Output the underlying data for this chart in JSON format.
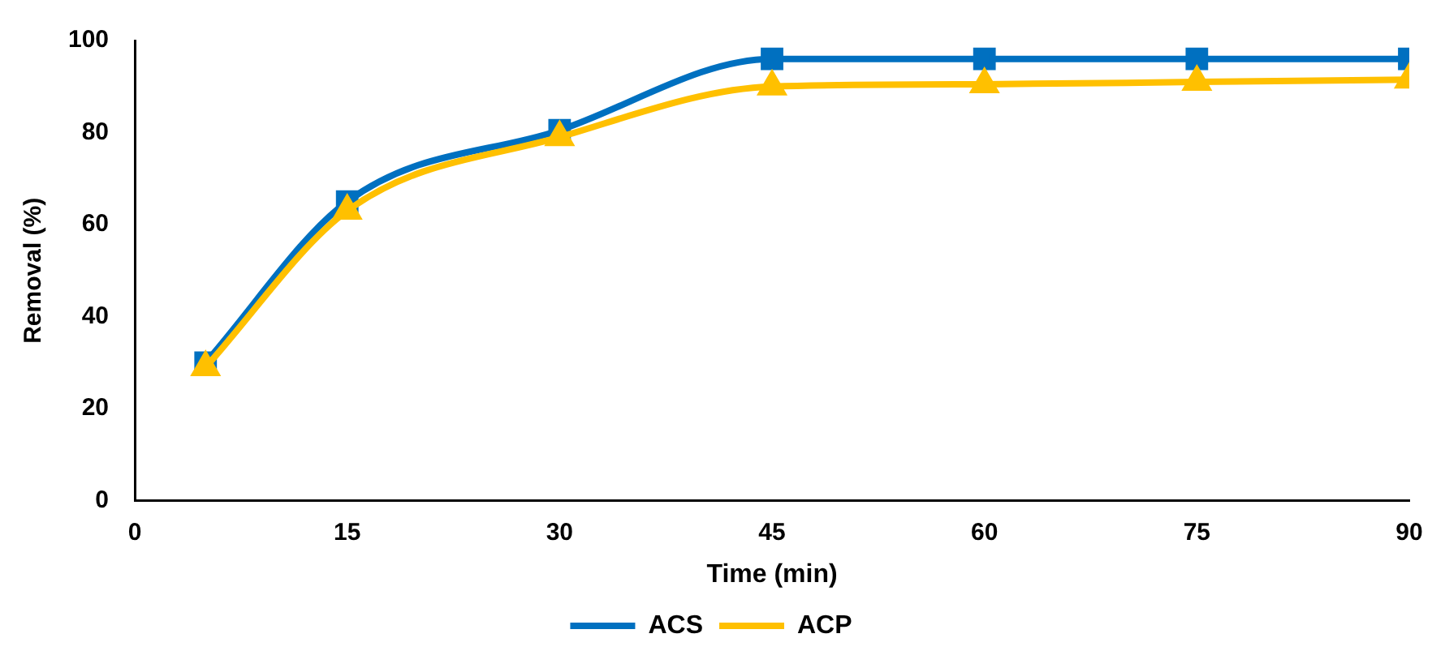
{
  "chart_data": {
    "type": "line",
    "xlabel": "Time (min)",
    "ylabel": "Removal (%)",
    "x": [
      5,
      15,
      30,
      45,
      60,
      75,
      90
    ],
    "series": [
      {
        "name": "ACS",
        "color": "#0070c0",
        "marker": "square",
        "values": [
          30,
          65,
          80.5,
          96,
          96,
          96,
          96
        ]
      },
      {
        "name": "ACP",
        "color": "#ffc000",
        "marker": "triangle",
        "values": [
          29,
          63,
          79,
          90,
          90.5,
          91,
          91.5
        ]
      }
    ],
    "xlim": [
      0,
      90
    ],
    "xticks": [
      0,
      15,
      30,
      45,
      60,
      75,
      90
    ],
    "ylim": [
      0,
      100
    ],
    "yticks": [
      0,
      20,
      40,
      60,
      80,
      100
    ],
    "grid": false,
    "legend": "bottom",
    "line_style": "solid"
  }
}
